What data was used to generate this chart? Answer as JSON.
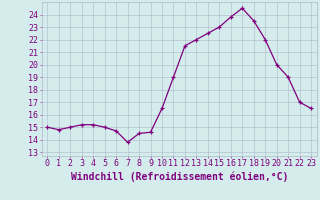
{
  "x": [
    0,
    1,
    2,
    3,
    4,
    5,
    6,
    7,
    8,
    9,
    10,
    11,
    12,
    13,
    14,
    15,
    16,
    17,
    18,
    19,
    20,
    21,
    22,
    23
  ],
  "y": [
    15.0,
    14.8,
    15.0,
    15.2,
    15.2,
    15.0,
    14.7,
    13.8,
    14.5,
    14.6,
    16.5,
    19.0,
    21.5,
    22.0,
    22.5,
    23.0,
    23.8,
    24.5,
    23.5,
    22.0,
    20.0,
    19.0,
    17.0,
    16.5
  ],
  "line_color": "#800080",
  "marker": "+",
  "xlabel": "Windchill (Refroidissement éolien,°C)",
  "yticks": [
    13,
    14,
    15,
    16,
    17,
    18,
    19,
    20,
    21,
    22,
    23,
    24
  ],
  "xticks": [
    0,
    1,
    2,
    3,
    4,
    5,
    6,
    7,
    8,
    9,
    10,
    11,
    12,
    13,
    14,
    15,
    16,
    17,
    18,
    19,
    20,
    21,
    22,
    23
  ],
  "ylim": [
    12.7,
    25.0
  ],
  "xlim": [
    -0.5,
    23.5
  ],
  "background_color": "#d4edec",
  "grid_color": "#b0b8cc",
  "tick_color": "#800080",
  "label_color": "#800080",
  "xlabel_fontsize": 7,
  "tick_fontsize": 6
}
